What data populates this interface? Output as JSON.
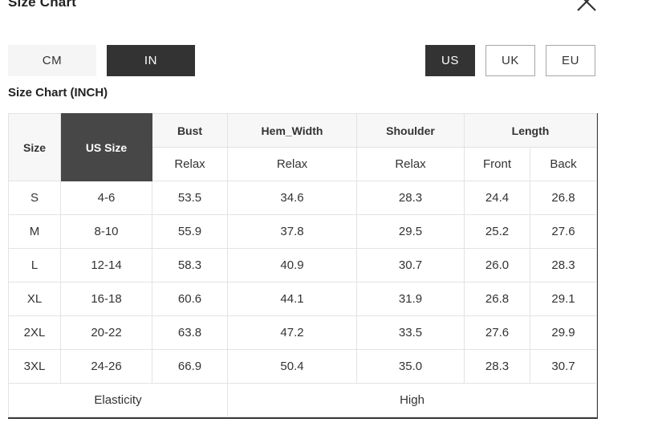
{
  "modal": {
    "title": "Size Chart"
  },
  "toggles": {
    "unit": {
      "options": [
        "CM",
        "IN"
      ],
      "selected": "IN"
    },
    "region": {
      "options": [
        "US",
        "UK",
        "EU"
      ],
      "selected": "US"
    }
  },
  "section": {
    "heading": "Size Chart (INCH)"
  },
  "chart_data": {
    "type": "table",
    "title": "Size Chart (INCH)",
    "unit": "INCH",
    "column_groups": [
      {
        "label": "Size",
        "rowspan": 2,
        "style": "light"
      },
      {
        "label": "US Size",
        "rowspan": 2,
        "style": "dark"
      },
      {
        "label": "Bust",
        "sub": [
          "Relax"
        ]
      },
      {
        "label": "Hem_Width",
        "sub": [
          "Relax"
        ]
      },
      {
        "label": "Shoulder",
        "sub": [
          "Relax"
        ]
      },
      {
        "label": "Length",
        "sub": [
          "Front",
          "Back"
        ]
      }
    ],
    "rows": [
      [
        "S",
        "4-6",
        "53.5",
        "34.6",
        "28.3",
        "24.4",
        "26.8"
      ],
      [
        "M",
        "8-10",
        "55.9",
        "37.8",
        "29.5",
        "25.2",
        "27.6"
      ],
      [
        "L",
        "12-14",
        "58.3",
        "40.9",
        "30.7",
        "26.0",
        "28.3"
      ],
      [
        "XL",
        "16-18",
        "60.6",
        "44.1",
        "31.9",
        "26.8",
        "29.1"
      ],
      [
        "2XL",
        "20-22",
        "63.8",
        "47.2",
        "33.5",
        "27.6",
        "29.9"
      ],
      [
        "3XL",
        "24-26",
        "66.9",
        "50.4",
        "35.0",
        "28.3",
        "30.7"
      ]
    ],
    "footer": {
      "label": "Elasticity",
      "value": "High",
      "label_colspan": 3,
      "value_colspan": 4
    }
  },
  "colors": {
    "accent_dark": "#333333",
    "header_cell_dark": "#474747",
    "button_light_bg": "#f5f5f5",
    "header_row_bg": "#f7f7f7",
    "cell_border": "#e3e3e3",
    "table_edge_dark": "#3a3a3a",
    "text": "#222222"
  }
}
